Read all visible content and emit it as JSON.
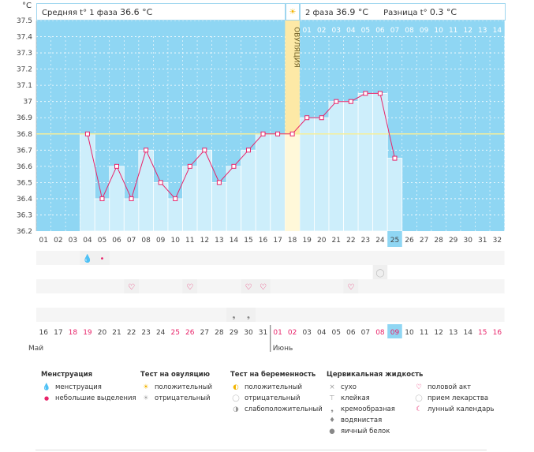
{
  "header": {
    "y_unit": "°C",
    "phase1_label": "Средняя t° 1 фаза",
    "phase1_value": "36.6 °C",
    "phase2_label": "2 фаза",
    "phase2_value": "36.9 °C",
    "diff_label": "Разница t°",
    "diff_value": "0.3 °C"
  },
  "ovulation_label": "ОВУЛЯЦИЯ",
  "phase2_days": [
    "01",
    "02",
    "03",
    "04",
    "05",
    "06",
    "07",
    "08",
    "09",
    "10",
    "11",
    "12",
    "13",
    "14"
  ],
  "day_numbers": [
    "01",
    "02",
    "03",
    "04",
    "05",
    "06",
    "07",
    "08",
    "09",
    "10",
    "11",
    "12",
    "13",
    "14",
    "15",
    "16",
    "17",
    "18",
    "19",
    "20",
    "21",
    "22",
    "23",
    "24",
    "25",
    "26",
    "27",
    "28",
    "29",
    "30",
    "31",
    "32"
  ],
  "calendar_dates": [
    "16",
    "17",
    "18",
    "19",
    "20",
    "21",
    "22",
    "23",
    "24",
    "25",
    "26",
    "27",
    "28",
    "29",
    "30",
    "31",
    "01",
    "02",
    "03",
    "04",
    "05",
    "06",
    "07",
    "08",
    "09",
    "10",
    "11",
    "12",
    "13",
    "14",
    "15",
    "16"
  ],
  "red_date_indexes": [
    2,
    3,
    9,
    10,
    16,
    17,
    23,
    24,
    30,
    31
  ],
  "today_index": 24,
  "months": {
    "may": "Май",
    "june": "Июнь"
  },
  "chart_data": {
    "type": "line",
    "ylabel": "°C",
    "ylim": [
      36.2,
      37.5
    ],
    "yticks": [
      36.2,
      36.3,
      36.4,
      36.5,
      36.6,
      36.7,
      36.8,
      36.9,
      37.0,
      37.1,
      37.2,
      37.3,
      37.4,
      37.5
    ],
    "ytick_labels": [
      "36.2",
      "36.3",
      "36.4",
      "36.5",
      "36.6",
      "36.7",
      "36.8",
      "36.9",
      "37",
      "37.1",
      "37.2",
      "37.3",
      "37.4",
      "37.5"
    ],
    "cover_line": 36.8,
    "ovulation_day": 18,
    "series": [
      {
        "days": [
          4,
          5,
          6,
          7,
          8,
          9,
          10,
          11,
          12,
          13,
          14,
          15,
          16,
          17,
          18,
          19,
          20,
          21,
          22,
          23,
          24,
          25
        ],
        "values": [
          36.8,
          36.4,
          36.6,
          36.4,
          36.7,
          36.5,
          36.4,
          36.6,
          36.7,
          36.5,
          36.6,
          36.7,
          36.8,
          36.8,
          36.8,
          36.9,
          36.9,
          37.0,
          37.0,
          37.05,
          37.05,
          36.65
        ]
      }
    ]
  },
  "markers": {
    "menstruation_big": [
      4
    ],
    "menstruation_small": [
      5
    ],
    "pill": [
      24
    ],
    "intercourse": [
      7,
      11,
      15,
      16,
      22
    ],
    "egg_white": [
      14,
      15
    ]
  },
  "legend": {
    "menstruation": {
      "title": "Менструация",
      "items": [
        "менструация",
        "небольшие выделения"
      ]
    },
    "ovulation_test": {
      "title": "Тест на овуляцию",
      "items": [
        "положительный",
        "отрицательный"
      ]
    },
    "pregnancy_test": {
      "title": "Тест на беременность",
      "items": [
        "положительный",
        "отрицательный",
        "слабоположительный"
      ]
    },
    "cervical": {
      "title": "Цервикальная жидкость",
      "items": [
        "сухо",
        "клейкая",
        "кремообразная",
        "водянистая",
        "яичный белок"
      ]
    },
    "other": {
      "items": [
        "половой акт",
        "прием лекарства",
        "лунный календарь"
      ]
    }
  }
}
